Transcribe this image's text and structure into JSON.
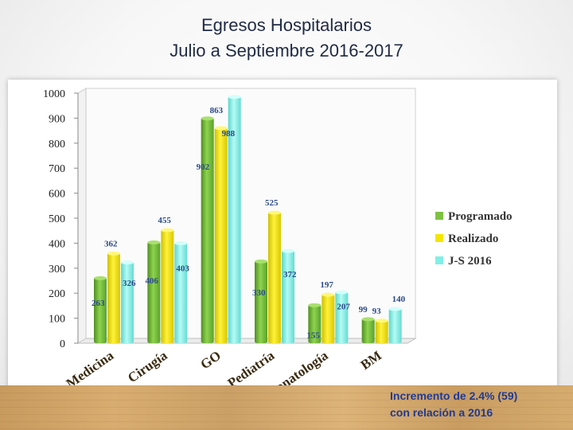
{
  "title": {
    "line1": "Egresos Hospitalarios",
    "line2": "Julio a Septiembre 2016-2017"
  },
  "note": {
    "line1": "Incremento de 2.4% (59)",
    "line2": "con relación a 2016"
  },
  "chart_data": {
    "type": "bar",
    "categories": [
      "Medicina",
      "Cirugía",
      "GO",
      "Pediatría",
      "Neonatología",
      "BM"
    ],
    "series": [
      {
        "name": "Programado",
        "color": "#7dc242",
        "values": [
          263,
          406,
          902,
          330,
          155,
          99
        ]
      },
      {
        "name": "Realizado",
        "color": "#f5e600",
        "values": [
          362,
          455,
          863,
          525,
          197,
          93
        ]
      },
      {
        "name": "J-S 2016",
        "color": "#7ff0e6",
        "values": [
          326,
          403,
          988,
          372,
          207,
          140
        ]
      }
    ],
    "ylim": [
      0,
      1000
    ],
    "yticks": [
      "0",
      "100",
      "200",
      "300",
      "400",
      "500",
      "600",
      "700",
      "800",
      "900",
      "1000"
    ],
    "data_labels": [
      [
        "263",
        "406",
        "902",
        "330",
        "155",
        "99"
      ],
      [
        "362",
        "455",
        "863",
        "525",
        "197",
        "93"
      ],
      [
        "326",
        "403",
        "988",
        "372",
        "207",
        "140"
      ]
    ],
    "legend_position": "right",
    "grid": false
  }
}
